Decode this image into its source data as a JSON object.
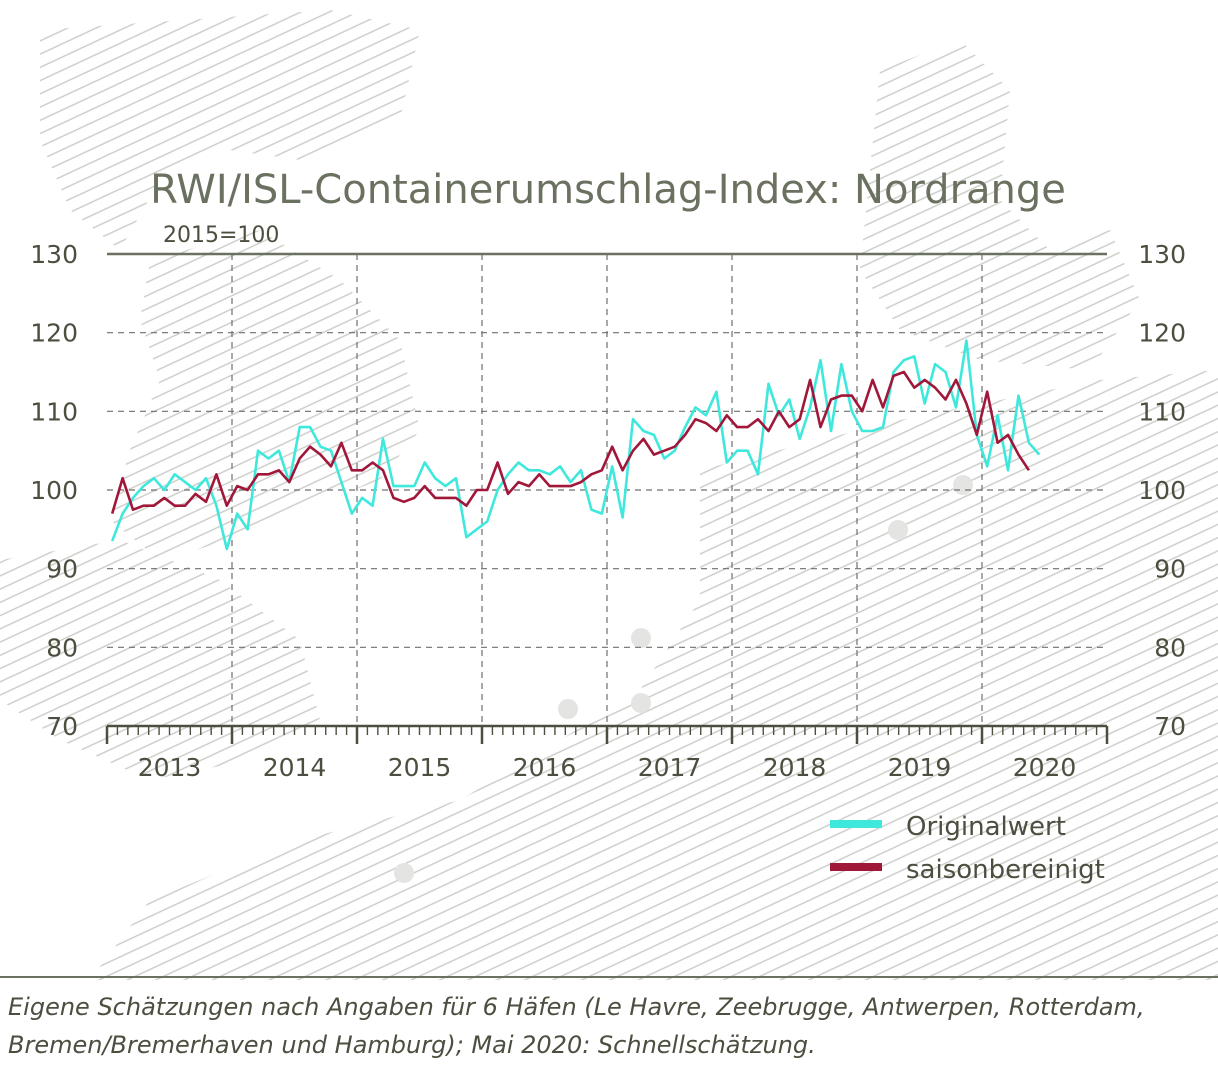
{
  "chart_data": {
    "type": "line",
    "title": "RWI/ISL-Containerumschlag-Index: Nordrange",
    "subtitle": "2015=100",
    "ylim": [
      70,
      130
    ],
    "yticks": [
      "70",
      "80",
      "90",
      "100",
      "110",
      "120",
      "130"
    ],
    "x_start": "2013-01",
    "x_end": "2020-12",
    "year_labels": [
      "2013",
      "2014",
      "2015",
      "2016",
      "2017",
      "2018",
      "2019",
      "2020"
    ],
    "grid": true,
    "legend_position": "bottom-right",
    "series": [
      {
        "name": "Originalwert",
        "color": "#3fe8dc",
        "values": [
          93.5,
          97,
          99,
          100.5,
          101.5,
          100,
          102,
          101,
          100,
          101.5,
          98,
          92.5,
          97,
          95,
          105,
          104,
          105,
          101,
          108,
          108,
          105.5,
          105,
          101,
          97,
          99,
          98,
          106.5,
          100.5,
          100.5,
          100.5,
          103.5,
          101.5,
          100.5,
          101.5,
          94,
          95,
          96,
          100,
          102,
          103.5,
          102.5,
          102.5,
          102,
          103,
          101,
          102.5,
          97.5,
          97,
          103,
          96.5,
          109,
          107.5,
          107,
          104,
          105,
          108,
          110.5,
          109.5,
          112.5,
          103.5,
          105,
          105,
          102,
          113.5,
          109.5,
          111.5,
          106.5,
          110.5,
          116.5,
          107.5,
          116,
          110,
          107.5,
          107.5,
          108,
          115,
          116.5,
          117,
          111,
          116,
          115,
          110.5,
          119,
          107,
          103,
          109.5,
          102.5,
          112,
          106,
          104.5
        ]
      },
      {
        "name": "saisonbereinigt",
        "color": "#a0173a",
        "values": [
          97,
          101.5,
          97.5,
          98,
          98,
          99,
          98,
          98,
          99.5,
          98.5,
          102,
          98,
          100.5,
          100,
          102,
          102,
          102.5,
          101,
          104,
          105.5,
          104.5,
          103,
          106,
          102.5,
          102.5,
          103.5,
          102.5,
          99,
          98.5,
          99,
          100.5,
          99,
          99,
          99,
          98,
          100,
          100,
          103.5,
          99.5,
          101,
          100.5,
          102,
          100.5,
          100.5,
          100.5,
          101,
          102,
          102.5,
          105.5,
          102.5,
          105,
          106.5,
          104.5,
          105,
          105.5,
          107,
          109,
          108.5,
          107.5,
          109.5,
          108,
          108,
          109,
          107.5,
          110,
          108,
          109,
          114,
          108,
          111.5,
          112,
          112,
          110,
          114,
          110.5,
          114.5,
          115,
          113,
          114,
          113,
          111.5,
          114,
          111,
          107,
          112.5,
          106,
          107,
          104.5,
          102.5
        ]
      }
    ]
  },
  "caption": {
    "line1": "Eigene Schätzungen nach Angaben für 6 Häfen (Le Havre, Zeebrugge, Antwerpen, Rotterdam,",
    "line2": "Bremen/Bremerhaven und Hamburg); Mai 2020: Schnellschätzung."
  }
}
